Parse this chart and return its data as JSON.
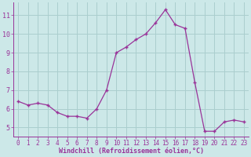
{
  "x": [
    0,
    1,
    2,
    3,
    4,
    5,
    6,
    7,
    8,
    9,
    10,
    11,
    12,
    13,
    14,
    15,
    16,
    17,
    18,
    19,
    20,
    21,
    22,
    23
  ],
  "y": [
    6.4,
    6.2,
    6.3,
    6.2,
    5.8,
    5.6,
    5.6,
    5.5,
    6.0,
    7.0,
    9.0,
    9.3,
    9.7,
    10.0,
    10.6,
    11.3,
    10.5,
    10.3,
    7.4,
    4.8,
    4.8,
    5.3,
    5.4,
    5.3
  ],
  "line_color": "#993399",
  "marker": "+",
  "marker_size": 3,
  "bg_color": "#cce8e8",
  "grid_color": "#aacece",
  "xlabel": "Windchill (Refroidissement éolien,°C)",
  "xlim": [
    -0.5,
    23.5
  ],
  "ylim": [
    4.5,
    11.7
  ],
  "yticks": [
    5,
    6,
    7,
    8,
    9,
    10,
    11
  ],
  "xticks": [
    0,
    1,
    2,
    3,
    4,
    5,
    6,
    7,
    8,
    9,
    10,
    11,
    12,
    13,
    14,
    15,
    16,
    17,
    18,
    19,
    20,
    21,
    22,
    23
  ],
  "tick_color": "#993399",
  "label_color": "#993399",
  "spine_color": "#993399",
  "tick_fontsize": 5.5,
  "ytick_fontsize": 6.0,
  "xlabel_fontsize": 6.0
}
